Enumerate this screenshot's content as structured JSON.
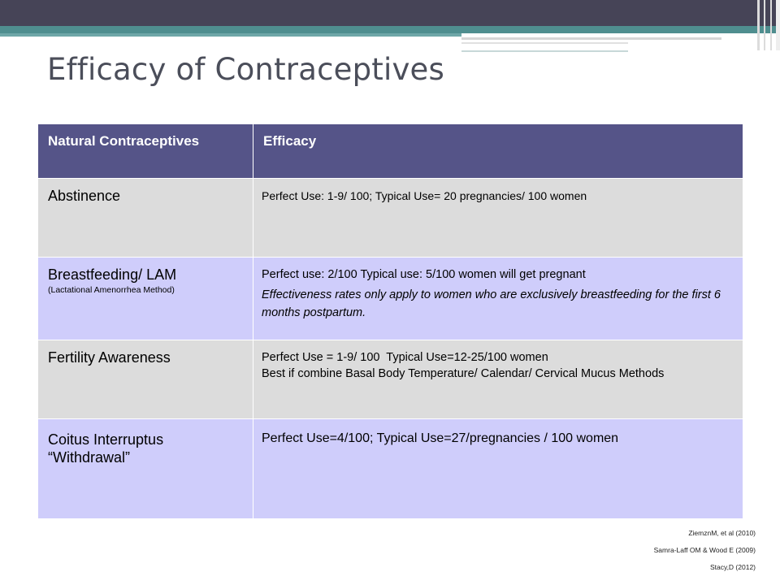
{
  "title": "Efficacy of Contraceptives",
  "table": {
    "headers": [
      "Natural Contraceptives",
      "Efficacy"
    ],
    "rows": [
      {
        "method": "Abstinence",
        "efficacy": [
          "Perfect Use: 1-9/ 100; Typical Use= 20 pregnancies/ 100 women"
        ]
      },
      {
        "method": "Breastfeeding/ LAM",
        "method_sub": "(Lactational Amenorrhea Method)",
        "efficacy": [
          "Perfect use: 2/100 Typical use: 5/100 women will get pregnant"
        ],
        "efficacy_note": "Effectiveness rates only apply to women who are exclusively breastfeeding for the first 6 months postpartum."
      },
      {
        "method": "Fertility Awareness",
        "efficacy": [
          "Perfect Use = 1-9/ 100  Typical Use=12-25/100 women",
          "Best if combine Basal Body Temperature/ Calendar/ Cervical Mucus Methods"
        ]
      },
      {
        "method": "Coitus Interruptus",
        "method_line2": "“Withdrawal”",
        "efficacy": [
          "Perfect Use=4/100; Typical Use=27/pregnancies / 100 women"
        ]
      }
    ]
  },
  "citations": [
    "ZiemznM, et al (2010)",
    "Samra-Laff OM & Wood E (2009)",
    "Stacy,D (2012)"
  ],
  "colors": {
    "header_bg": "#555488",
    "row_gray": "#dcdcdc",
    "row_lavender": "#cfcdfb",
    "top_bar": "#464457",
    "teal_bar": "#4f8e8f",
    "title_text": "#4b4e5a"
  }
}
